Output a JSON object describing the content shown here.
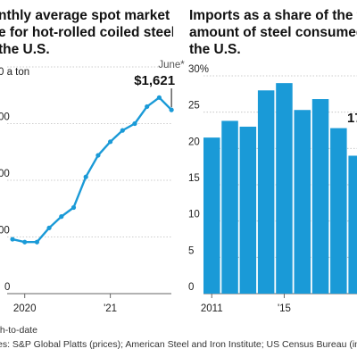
{
  "chart_data": [
    {
      "type": "line",
      "title": "nthly average spot market\ne for hot-rolled coiled steel\nthe U.S.",
      "unit_label": "0 a ton",
      "y_ticks": [
        "00",
        "00",
        "00",
        "0"
      ],
      "x_ticks": [
        "2020",
        "'21"
      ],
      "annotation": {
        "label": "June*",
        "value": "$1,621"
      },
      "x_start": "2020-05",
      "x": [
        "2020-05",
        "2020-06",
        "2020-07",
        "2020-08",
        "2020-09",
        "2020-10",
        "2020-11",
        "2020-12",
        "2021-01",
        "2021-02",
        "2021-03",
        "2021-04",
        "2021-05",
        "2021-06"
      ],
      "values": [
        480,
        455,
        455,
        580,
        680,
        760,
        1030,
        1220,
        1340,
        1440,
        1500,
        1650,
        1730,
        1621
      ],
      "ylim": [
        0,
        2000
      ],
      "color": "#1a9ad7",
      "grid": true
    },
    {
      "type": "bar",
      "title": "Imports as a share of the to\namount of steel consumed\nthe U.S.",
      "unit_label": "30%",
      "y_ticks": [
        "30%",
        "25",
        "20",
        "15",
        "10",
        "5",
        "0"
      ],
      "x_ticks": [
        "2011",
        "'15"
      ],
      "categories": [
        "2011",
        "2012",
        "2013",
        "2014",
        "2015",
        "2016",
        "2017",
        "2018",
        "2019",
        "2020"
      ],
      "values": [
        21.5,
        23.8,
        23.0,
        28.0,
        29.0,
        25.3,
        26.8,
        22.8,
        19.0,
        17.0
      ],
      "annotation_value": "17",
      "ylim": [
        0,
        30
      ],
      "color": "#1a9ad7",
      "grid": true
    }
  ],
  "footer": {
    "note": "th-to-date",
    "source": "es: S&P Global Platts (prices); American Steel and Iron Institute; US Census Bureau (im"
  }
}
